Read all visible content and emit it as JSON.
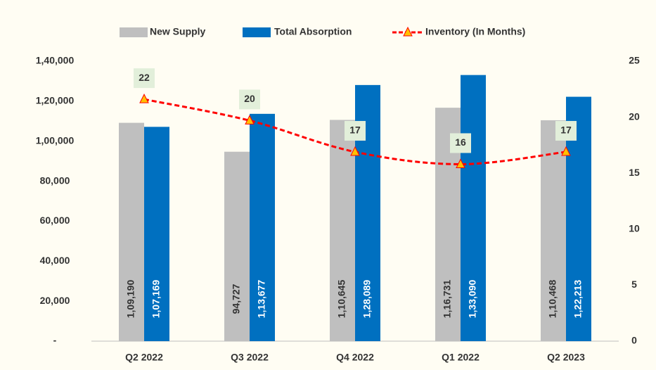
{
  "chart_data": {
    "type": "bar_line",
    "categories": [
      "Q2 2022",
      "Q3 2022",
      "Q4 2022",
      "Q1 2022",
      "Q2 2023"
    ],
    "series": [
      {
        "name": "New Supply",
        "color": "#bfbfbf",
        "type": "bar",
        "values": [
          109190,
          94727,
          110645,
          116731,
          110468
        ],
        "value_labels": [
          "1,09,190",
          "94,727",
          "1,10,645",
          "1,16,731",
          "1,10,468"
        ]
      },
      {
        "name": "Total Absorption",
        "color": "#0070c0",
        "type": "bar",
        "values": [
          107169,
          113677,
          128089,
          133090,
          122213
        ],
        "value_labels": [
          "1,07,169",
          "1,13,677",
          "1,28,089",
          "1,33,090",
          "1,22,213"
        ]
      },
      {
        "name": "Inventory (In Months)",
        "color": "#ff0000",
        "marker_color": "#ffc000",
        "type": "line",
        "axis": "y2",
        "values": [
          21.6,
          19.7,
          16.9,
          15.8,
          16.9
        ],
        "value_labels": [
          "22",
          "20",
          "17",
          "16",
          "17"
        ]
      }
    ],
    "ylim": [
      0,
      140000
    ],
    "yticks": [
      {
        "value": 0,
        "label": "-"
      },
      {
        "value": 20000,
        "label": "20,000"
      },
      {
        "value": 40000,
        "label": "40,000"
      },
      {
        "value": 60000,
        "label": "60,000"
      },
      {
        "value": 80000,
        "label": "80,000"
      },
      {
        "value": 100000,
        "label": "1,00,000"
      },
      {
        "value": 120000,
        "label": "1,20,000"
      },
      {
        "value": 140000,
        "label": "1,40,000"
      }
    ],
    "y2lim": [
      0,
      25
    ],
    "y2ticks": [
      0,
      5,
      10,
      15,
      20,
      25
    ],
    "legend": "top",
    "grid": false
  }
}
